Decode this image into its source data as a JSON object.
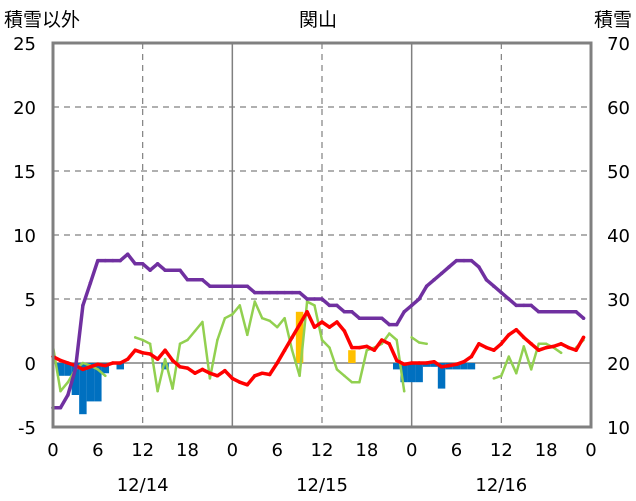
{
  "chart_data": {
    "type": "line",
    "title": "関山",
    "left_axis_label": "積雪以外",
    "right_axis_label": "積雪",
    "left_ylim": [
      -5,
      25
    ],
    "left_ticks": [
      "25",
      "20",
      "15",
      "10",
      "5",
      "0",
      "-5"
    ],
    "right_ylim": [
      10,
      70
    ],
    "right_ticks": [
      "70",
      "60",
      "50",
      "40",
      "30",
      "20",
      "10"
    ],
    "xlim": [
      0,
      72
    ],
    "x_tick_labels": [
      "0",
      "6",
      "12",
      "18",
      "0",
      "6",
      "12",
      "18",
      "0",
      "6",
      "12",
      "18",
      "0"
    ],
    "date_labels": [
      {
        "text": "12/14",
        "x": 12
      },
      {
        "text": "12/15",
        "x": 36
      },
      {
        "text": "12/16",
        "x": 60
      }
    ],
    "grid": {
      "solid_x": [
        24,
        48
      ],
      "dashed_x": [
        12,
        36,
        60
      ],
      "dashed_y": [
        5,
        10,
        15,
        20
      ]
    },
    "series": [
      {
        "kind": "bar",
        "color": "#0070C0",
        "axis": "left",
        "x": [
          1,
          2,
          3,
          4,
          5,
          6,
          7,
          9,
          15,
          46,
          47,
          48,
          49,
          50,
          51,
          52,
          53,
          54,
          55,
          56
        ],
        "values": [
          -1.0,
          -1.0,
          -2.5,
          -4.0,
          -3.0,
          -3.0,
          -0.8,
          -0.5,
          -0.5,
          -0.5,
          -1.5,
          -1.5,
          -1.5,
          -0.3,
          -0.3,
          -2.0,
          -0.5,
          -0.5,
          -0.5,
          -0.5
        ]
      },
      {
        "kind": "bar",
        "color": "#FFC000",
        "axis": "left",
        "x": [
          33,
          40
        ],
        "values": [
          4.0,
          1.0
        ]
      },
      {
        "kind": "line",
        "color": "#92D050",
        "axis": "left",
        "width": 2.5,
        "segments": [
          {
            "x": [
              0,
              1,
              2,
              3,
              4,
              5,
              6,
              7
            ],
            "y": [
              1.3,
              -2.2,
              -1.5,
              -0.5,
              0.0,
              -0.2,
              -0.5,
              -1.0
            ]
          },
          {
            "x": [
              11,
              12,
              13,
              14,
              15,
              16,
              17,
              18,
              19,
              20,
              21,
              22,
              23,
              24,
              25,
              26,
              27,
              28,
              29,
              30,
              31,
              32,
              33,
              34,
              35,
              36,
              37,
              38,
              39,
              40,
              41,
              42,
              43,
              44,
              45,
              46,
              47
            ],
            "y": [
              2.0,
              1.8,
              1.5,
              -2.2,
              0.3,
              -2.0,
              1.5,
              1.8,
              2.5,
              3.2,
              -1.2,
              1.8,
              3.5,
              3.8,
              4.5,
              2.2,
              4.8,
              3.5,
              3.3,
              2.8,
              3.5,
              1.0,
              -1.0,
              4.8,
              4.5,
              1.8,
              1.2,
              -0.5,
              -1.0,
              -1.5,
              -1.5,
              1.0,
              1.2,
              1.5,
              2.3,
              1.8,
              -2.2
            ]
          },
          {
            "x": [
              48,
              49,
              50
            ],
            "y": [
              2.0,
              1.6,
              1.5
            ]
          },
          {
            "x": [
              59,
              60,
              61,
              62,
              63,
              64,
              65,
              66,
              67,
              68
            ],
            "y": [
              -1.2,
              -1.0,
              0.5,
              -0.8,
              1.3,
              -0.5,
              1.5,
              1.5,
              1.2,
              0.8
            ]
          },
          {
            "x": [
              70,
              71
            ],
            "y": [
              1.2,
              1.8
            ]
          }
        ]
      },
      {
        "kind": "line",
        "color": "#FF0000",
        "axis": "left",
        "width": 3.5,
        "segments": [
          {
            "x": [
              0,
              1,
              2,
              3,
              4,
              5,
              6,
              7,
              8,
              9,
              10,
              11,
              12,
              13,
              14,
              15,
              16,
              17,
              18,
              19,
              20,
              21,
              22,
              23,
              24,
              25,
              26,
              27,
              28,
              29,
              30,
              31,
              32,
              33,
              34,
              35,
              36,
              37,
              38,
              39,
              40,
              41,
              42,
              43,
              44,
              45,
              46,
              47,
              48,
              49,
              50,
              51,
              52,
              53,
              54,
              55,
              56,
              57,
              58,
              59,
              60,
              61,
              62,
              63,
              64,
              65,
              66,
              67,
              68,
              69,
              70,
              71
            ],
            "y": [
              0.5,
              0.2,
              0.0,
              -0.2,
              -0.5,
              -0.3,
              -0.1,
              -0.2,
              0.0,
              0.0,
              0.3,
              1.0,
              0.8,
              0.7,
              0.3,
              1.0,
              0.2,
              -0.3,
              -0.4,
              -0.8,
              -0.5,
              -0.8,
              -1.0,
              -0.6,
              -1.2,
              -1.5,
              -1.7,
              -1.0,
              -0.8,
              -0.9,
              0.0,
              1.0,
              2.0,
              3.0,
              4.0,
              2.8,
              3.2,
              2.8,
              3.2,
              2.5,
              1.2,
              1.2,
              1.3,
              1.0,
              1.8,
              1.5,
              0.2,
              -0.1,
              0.0,
              0.0,
              0.0,
              0.1,
              -0.3,
              -0.2,
              -0.1,
              0.1,
              0.5,
              1.5,
              1.2,
              1.0,
              1.5,
              2.2,
              2.6,
              2.0,
              1.5,
              1.0,
              1.2,
              1.3,
              1.5,
              1.2,
              1.0,
              2.0
            ]
          }
        ]
      },
      {
        "kind": "line",
        "color": "#7030A0",
        "axis": "right",
        "width": 3.5,
        "segments": [
          {
            "x": [
              0,
              1,
              2,
              3,
              4,
              5,
              6,
              7,
              8,
              9,
              10,
              11,
              12,
              13,
              14,
              15,
              16,
              17,
              18,
              19,
              20,
              21,
              22,
              23,
              24,
              25,
              26,
              27,
              28,
              29,
              30,
              31,
              32,
              33,
              34,
              35,
              36,
              37,
              38,
              39,
              40,
              41,
              42,
              43,
              44,
              45,
              46,
              47,
              48,
              49,
              50,
              51,
              52,
              53,
              54,
              55,
              56,
              57,
              58,
              59,
              60,
              61,
              62,
              63,
              64,
              65,
              66,
              67,
              68,
              69,
              70,
              71
            ],
            "y": [
              13.0,
              13.0,
              15.0,
              19.0,
              29.0,
              32.5,
              36.0,
              36.0,
              36.0,
              36.0,
              37.0,
              35.5,
              35.5,
              34.5,
              35.5,
              34.5,
              34.5,
              34.5,
              33.0,
              33.0,
              33.0,
              32.0,
              32.0,
              32.0,
              32.0,
              32.0,
              32.0,
              31.0,
              31.0,
              31.0,
              31.0,
              31.0,
              31.0,
              31.0,
              30.0,
              30.0,
              30.0,
              29.0,
              29.0,
              28.0,
              28.0,
              27.0,
              27.0,
              27.0,
              27.0,
              26.0,
              26.0,
              28.0,
              29.0,
              30.0,
              32.0,
              33.0,
              34.0,
              35.0,
              36.0,
              36.0,
              36.0,
              35.0,
              33.0,
              32.0,
              31.0,
              30.0,
              29.0,
              29.0,
              29.0,
              28.0,
              28.0,
              28.0,
              28.0,
              28.0,
              28.0,
              27.0
            ]
          }
        ]
      }
    ]
  }
}
